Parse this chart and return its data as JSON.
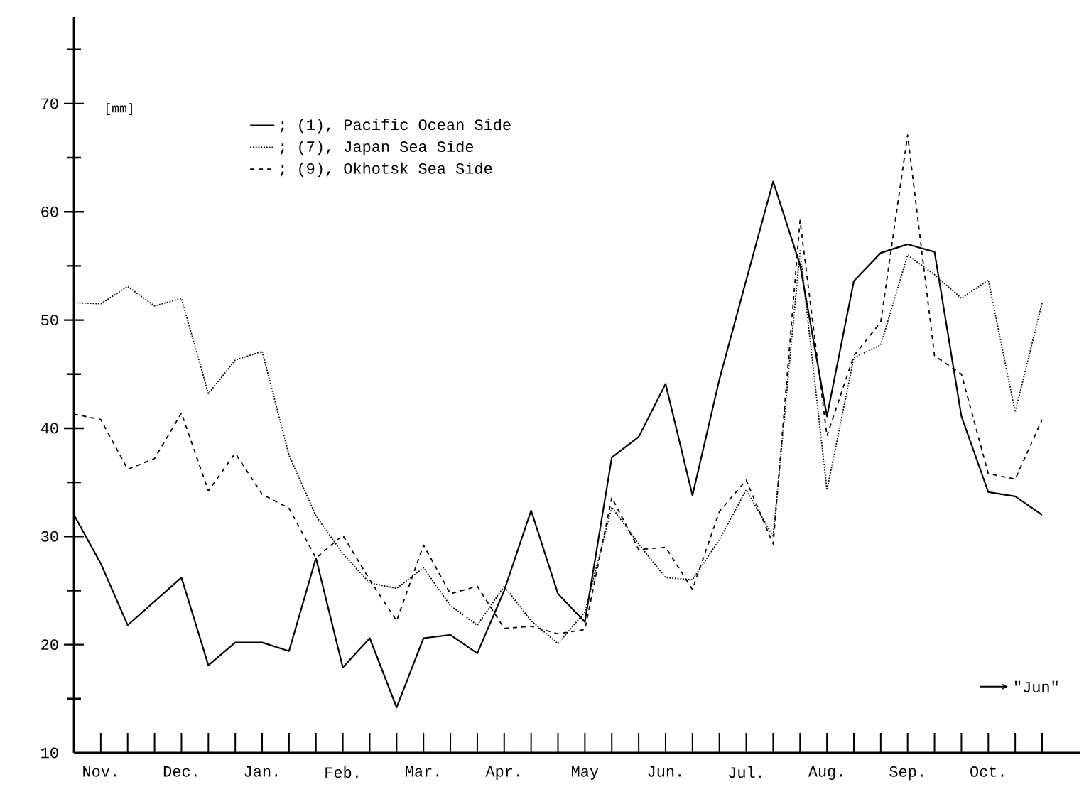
{
  "chart_data": {
    "type": "line",
    "ylabel": "[mm]",
    "annotations": [
      "\"Jun\""
    ],
    "categories": [
      null,
      "Nov.",
      null,
      null,
      "Dec.",
      null,
      null,
      "Jan.",
      null,
      null,
      "Feb.",
      null,
      null,
      "Mar.",
      null,
      null,
      "Apr.",
      null,
      null,
      "May",
      null,
      null,
      "Jun.",
      null,
      null,
      "Jul.",
      null,
      null,
      "Aug.",
      null,
      null,
      "Sep.",
      null,
      null,
      "Oct.",
      null,
      null
    ],
    "series": [
      {
        "name": "; (1), Pacific Ocean Side",
        "color": "#000000",
        "line_style": "solid",
        "values": [
          32,
          27.5,
          21.8,
          24,
          26.2,
          18.1,
          20.2,
          20.2,
          19.4,
          28,
          17.9,
          20.6,
          14.2,
          20.6,
          20.9,
          19.2,
          25,
          32.4,
          24.7,
          22.1,
          37.3,
          39.2,
          44.1,
          33.8,
          44.5,
          53.7,
          62.8,
          55.1,
          41.1,
          53.6,
          56.2,
          57,
          56.3,
          41.1,
          34.1,
          33.7,
          32
        ]
      },
      {
        "name": "; (7), Japan Sea Side",
        "color": "#000000",
        "line_style": "dotted",
        "values": [
          51.6,
          51.5,
          53.1,
          51.3,
          52,
          43.2,
          46.3,
          47.1,
          37.5,
          31.9,
          28.4,
          25.7,
          25.2,
          27.1,
          23.6,
          21.8,
          25.4,
          22.2,
          20.1,
          23,
          32.7,
          29.3,
          26.2,
          26,
          29.7,
          34.3,
          30,
          56.4,
          34.3,
          46.5,
          47.7,
          56,
          54.2,
          52,
          53.7,
          41.5,
          51.6
        ]
      },
      {
        "name": "; (9), Okhotsk Sea Side",
        "color": "#000000",
        "line_style": "dashed",
        "values": [
          41.3,
          40.8,
          36.2,
          37.2,
          41.4,
          34.2,
          37.7,
          33.9,
          32.6,
          28,
          30.1,
          26,
          22.2,
          29.2,
          24.7,
          25.4,
          21.5,
          21.7,
          21,
          21.4,
          33.6,
          28.8,
          29,
          25.1,
          32.3,
          35.2,
          29.3,
          59.2,
          39.3,
          46.7,
          49.8,
          67.1,
          46.7,
          45,
          35.8,
          35.3,
          40.8
        ]
      }
    ],
    "ylim": [
      10,
      78
    ],
    "yticks": [
      10,
      20,
      30,
      40,
      50,
      60,
      70,
      {
        "value": 15,
        "label": null
      },
      {
        "value": 25,
        "label": null
      },
      {
        "value": 35,
        "label": null
      },
      {
        "value": 45,
        "label": null
      },
      {
        "value": 55,
        "label": null
      },
      {
        "value": 65,
        "label": null
      },
      {
        "value": 75,
        "label": null
      }
    ],
    "legend": "top left",
    "grid": false,
    "marker": "none"
  }
}
